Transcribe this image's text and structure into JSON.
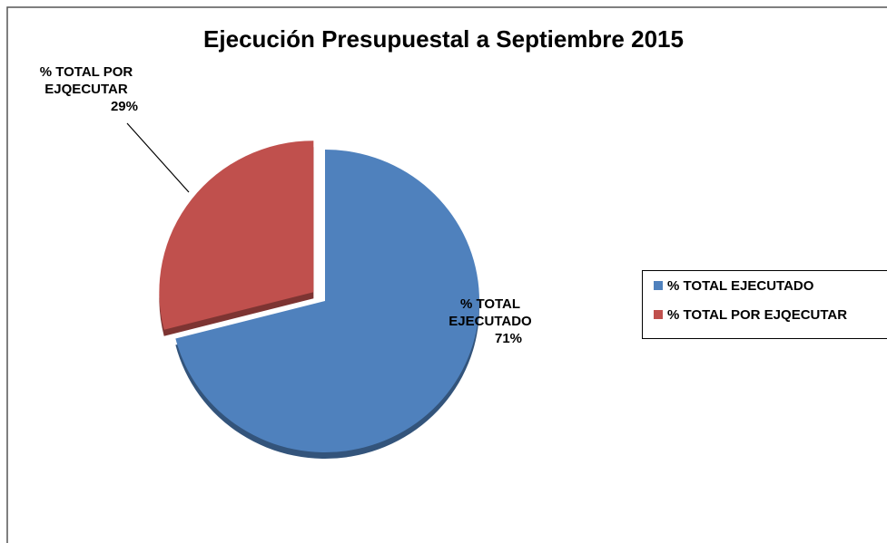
{
  "chart_data": {
    "type": "pie",
    "title": "Ejecución Presupuestal a Septiembre 2015",
    "categories": [
      "% TOTAL EJECUTADO",
      "% TOTAL POR EJQECUTAR"
    ],
    "values": [
      71,
      29
    ],
    "value_labels": [
      "71%",
      "29%"
    ],
    "colors": [
      "#4f81bd",
      "#c0504d"
    ],
    "legend": "right"
  }
}
